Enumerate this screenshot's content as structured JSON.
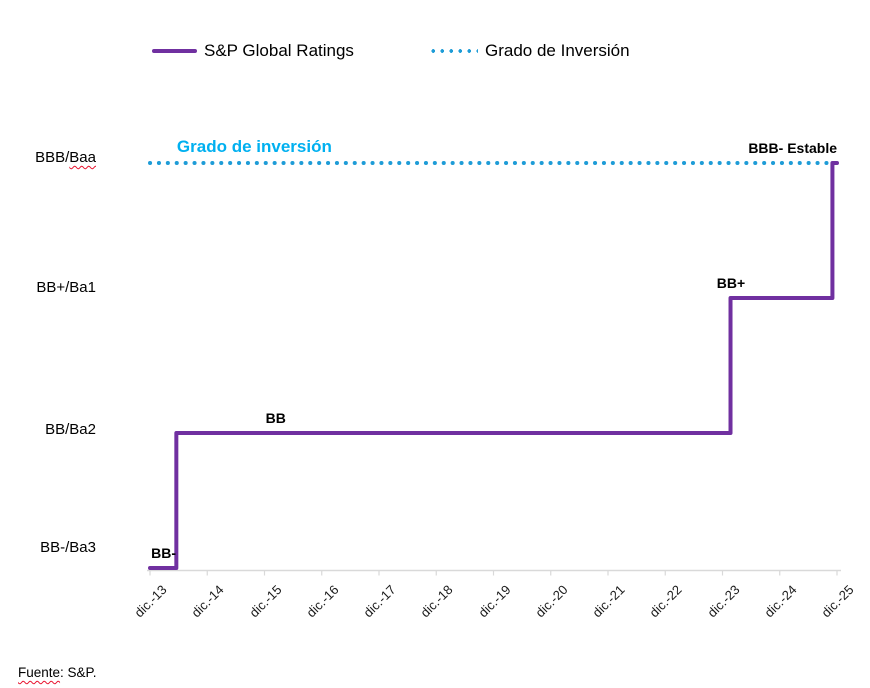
{
  "legend": {
    "items": [
      {
        "label": "S&P Global Ratings",
        "swatch": "solid-line",
        "color": "#7030A0"
      },
      {
        "label": "Grado de Inversión",
        "swatch": "dotted-line",
        "color": "#1E9CD7"
      }
    ]
  },
  "chart_data": {
    "type": "line",
    "subtype": "step",
    "title": "",
    "xlabel": "",
    "ylabel": "",
    "grid": false,
    "legend_position": "top",
    "xlim": [
      0,
      12
    ],
    "ylim": [
      0,
      3
    ],
    "x_ticks": [
      "dic.-13",
      "dic.-14",
      "dic.-15",
      "dic.-16",
      "dic.-17",
      "dic.-18",
      "dic.-19",
      "dic.-20",
      "dic.-21",
      "dic.-22",
      "dic.-23",
      "dic.-24",
      "dic.-25"
    ],
    "y_ticks": [
      {
        "text": "BB-/Ba3"
      },
      {
        "text": "BB/Ba2"
      },
      {
        "text": "BB+/Ba1"
      },
      {
        "text": "BBB/Baa",
        "wavy_part": "Baa"
      }
    ],
    "series": [
      {
        "name": "S&P Global Ratings",
        "color": "#7030A0",
        "style": "solid",
        "width": 4,
        "points": [
          [
            0,
            0
          ],
          [
            0.46,
            0
          ],
          [
            0.46,
            1
          ],
          [
            10.14,
            1
          ],
          [
            10.14,
            2
          ],
          [
            11.92,
            2
          ],
          [
            11.92,
            3
          ],
          [
            12,
            3
          ]
        ],
        "rating_history": [
          {
            "date": "dic.-13",
            "rating": "BB-"
          },
          {
            "date": "dic.-14",
            "rating": "BB"
          },
          {
            "date": "dic.-23",
            "rating": "BB+"
          },
          {
            "date": "dic.-25",
            "rating": "BBB- Estable"
          }
        ]
      },
      {
        "name": "Grado de Inversión",
        "color": "#1E9CD7",
        "style": "dotted",
        "width": 4,
        "points": [
          [
            0,
            3
          ],
          [
            12,
            3
          ]
        ]
      }
    ],
    "annotations": [
      {
        "text": "BB-",
        "x": 0.02,
        "level": 0,
        "align": "left",
        "bold": true,
        "size": 14,
        "color": "#000000"
      },
      {
        "text": "BB",
        "x": 2.02,
        "level": 1,
        "align": "left",
        "bold": true,
        "size": 14,
        "color": "#000000"
      },
      {
        "text": "BB+",
        "x": 9.9,
        "level": 2,
        "align": "left",
        "bold": true,
        "size": 14,
        "color": "#000000"
      },
      {
        "text": "BBB- Estable",
        "x": 12,
        "level": 3,
        "align": "right",
        "bold": true,
        "size": 14,
        "color": "#000000"
      },
      {
        "text": "Grado de inversión",
        "x": 0.47,
        "level": 3,
        "align": "left",
        "bold": true,
        "size": 17,
        "color": "#00B0F0"
      }
    ]
  },
  "footer": {
    "spellcheck_word": "Fuente",
    "rest": ": S&P."
  },
  "colors": {
    "series_sp": "#7030A0",
    "investment_grade_dots": "#1E9CD7",
    "investment_grade_label": "#00B0F0",
    "axis": "#D9D9D9",
    "spellcheck_underline": "#E8112D"
  }
}
